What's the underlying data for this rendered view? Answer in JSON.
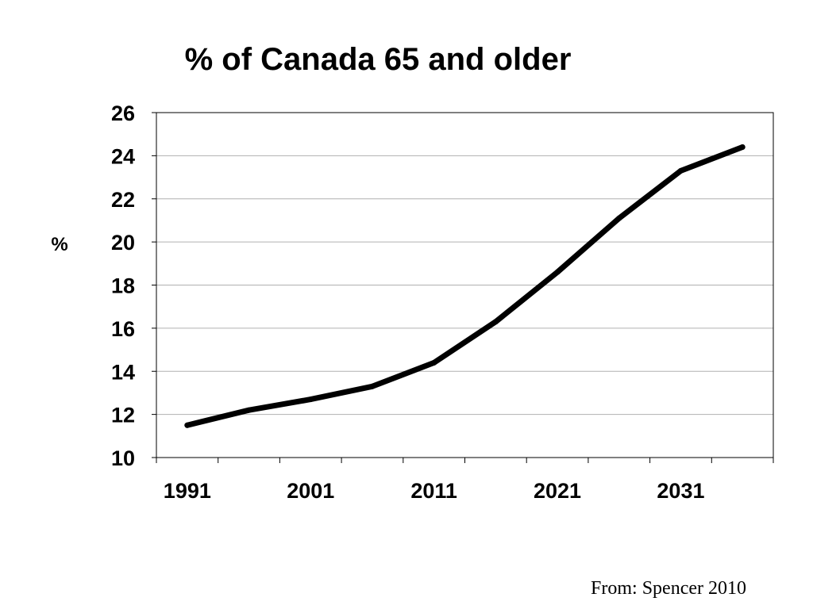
{
  "chart_data": {
    "type": "line",
    "title": "% of Canada 65 and older",
    "xlabel": "",
    "ylabel": "%",
    "x": [
      1991,
      1996,
      2001,
      2006,
      2011,
      2016,
      2021,
      2026,
      2031,
      2036
    ],
    "series": [
      {
        "values": [
          11.5,
          12.2,
          12.7,
          13.3,
          14.4,
          16.3,
          18.6,
          21.1,
          23.3,
          24.4
        ],
        "color": "#000000"
      }
    ],
    "xticks": [
      "1991",
      "2001",
      "2011",
      "2021",
      "2031"
    ],
    "yticks": [
      "10",
      "12",
      "14",
      "16",
      "18",
      "20",
      "22",
      "24",
      "26"
    ],
    "ylim": [
      10,
      26
    ],
    "grid": true,
    "legend": "none"
  },
  "source": "From: Spencer 2010"
}
